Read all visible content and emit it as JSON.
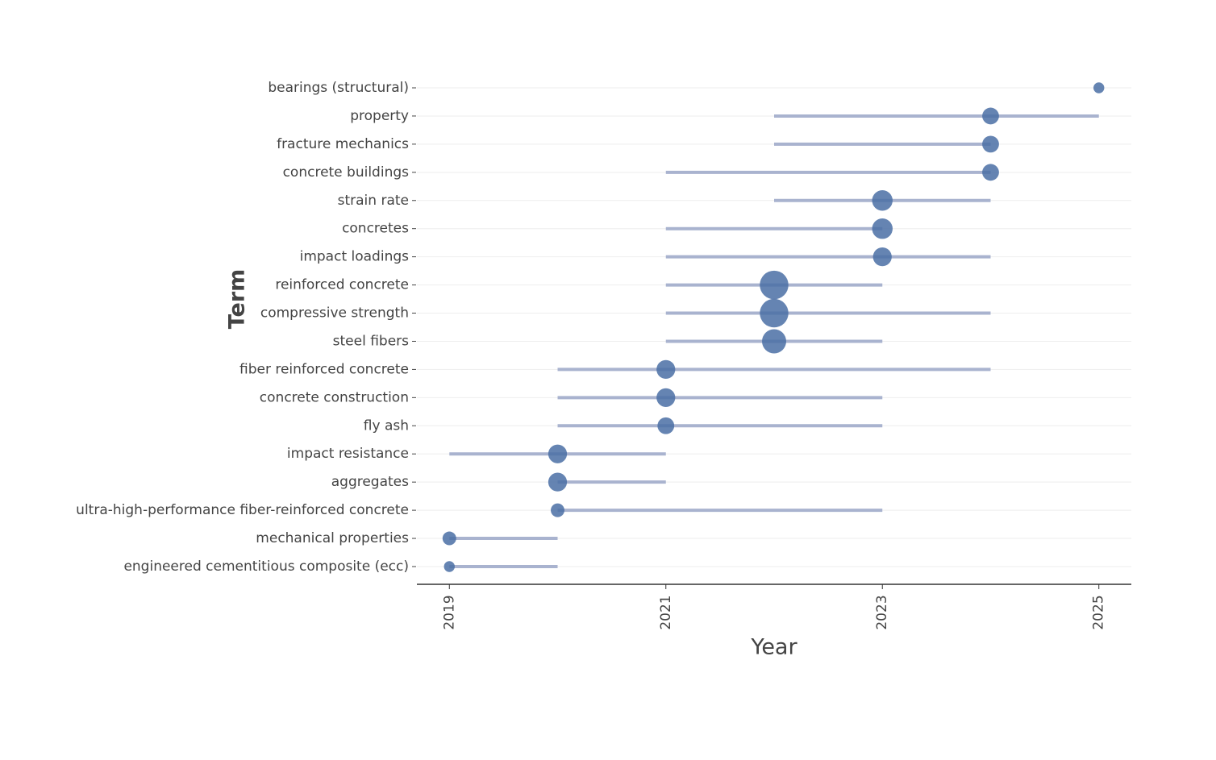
{
  "chart_data": {
    "type": "trend",
    "x_label": "Year",
    "y_label": "Term",
    "categories": [
      "bearings (structural)",
      "property",
      "fracture mechanics",
      "concrete buildings",
      "strain rate",
      "concretes",
      "impact loadings",
      "reinforced concrete",
      "compressive strength",
      "steel fibers",
      "fiber reinforced concrete",
      "concrete construction",
      "fly ash",
      "impact resistance",
      "aggregates",
      "ultra-high-performance fiber-reinforced concrete",
      "mechanical properties",
      "engineered cementitious composite (ecc)"
    ],
    "start": [
      2025,
      2022,
      2022,
      2021,
      2022,
      2021,
      2021,
      2021,
      2021,
      2021,
      2020,
      2020,
      2020,
      2019,
      2020,
      2020,
      2019,
      2019
    ],
    "median": [
      2025,
      2024,
      2024,
      2024,
      2023,
      2023,
      2023,
      2022,
      2022,
      2022,
      2021,
      2021,
      2021,
      2020,
      2020,
      2020,
      2019,
      2019
    ],
    "end": [
      2025,
      2025,
      2024,
      2024,
      2024,
      2023,
      2024,
      2023,
      2024,
      2023,
      2024,
      2023,
      2023,
      2021,
      2021,
      2023,
      2020,
      2020
    ],
    "sizes": [
      5,
      12,
      12,
      12,
      18,
      18,
      15,
      35,
      35,
      25,
      15,
      15,
      12,
      15,
      15,
      8,
      8,
      5
    ],
    "xlim": [
      2018.7,
      2025.3
    ],
    "xticks": [
      2019,
      2021,
      2023,
      2025
    ],
    "line_color": "#a9b3cf",
    "point_color": "#4a6fa5",
    "grid": true
  }
}
